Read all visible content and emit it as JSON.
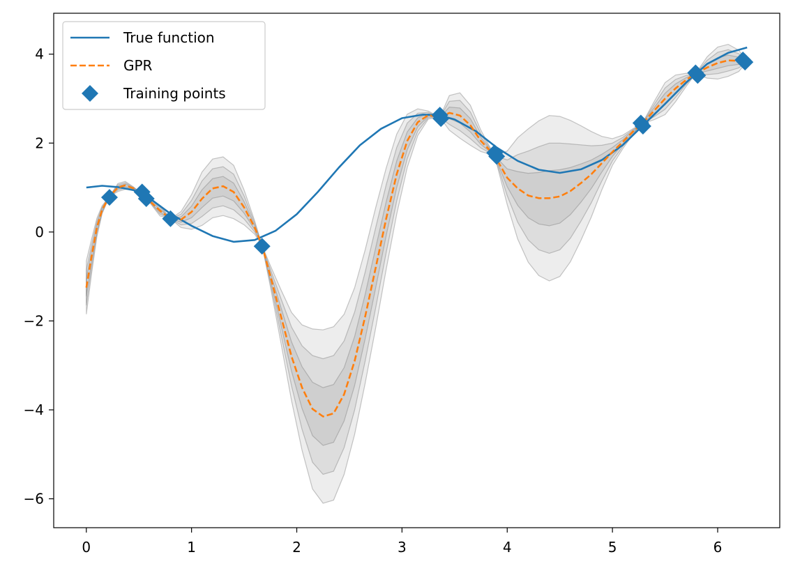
{
  "chart_data": {
    "type": "line",
    "title": "",
    "xlabel": "",
    "ylabel": "",
    "xlim": [
      -0.31,
      6.59
    ],
    "ylim": [
      -6.65,
      4.92
    ],
    "xticks": [
      0,
      1,
      2,
      3,
      4,
      5,
      6
    ],
    "yticks": [
      4,
      2,
      0,
      -2,
      -4,
      -6
    ],
    "xtick_labels": [
      "0",
      "1",
      "2",
      "3",
      "4",
      "5",
      "6"
    ],
    "ytick_labels": [
      "4",
      "2",
      "0",
      "−2",
      "−4",
      "−6"
    ],
    "grid": false,
    "legend_position": "top-left",
    "series": [
      {
        "name": "True function",
        "kind": "line",
        "color": "#1f77b4",
        "x": [
          0.0,
          0.15,
          0.3,
          0.45,
          0.6,
          0.8,
          1.0,
          1.2,
          1.4,
          1.6,
          1.8,
          2.0,
          2.2,
          2.4,
          2.6,
          2.8,
          3.0,
          3.2,
          3.35,
          3.5,
          3.7,
          3.9,
          4.1,
          4.3,
          4.5,
          4.7,
          4.9,
          5.1,
          5.3,
          5.5,
          5.7,
          5.9,
          6.1,
          6.28
        ],
        "y": [
          1.0,
          1.04,
          1.01,
          0.94,
          0.76,
          0.41,
          0.14,
          -0.09,
          -0.22,
          -0.18,
          0.03,
          0.4,
          0.9,
          1.45,
          1.95,
          2.32,
          2.56,
          2.64,
          2.63,
          2.53,
          2.27,
          1.9,
          1.6,
          1.4,
          1.33,
          1.41,
          1.62,
          1.96,
          2.42,
          2.88,
          3.36,
          3.78,
          4.03,
          4.15
        ]
      },
      {
        "name": "GPR",
        "kind": "dashed-line",
        "color": "#ff7f0e",
        "x": [
          0.0,
          0.05,
          0.1,
          0.15,
          0.22,
          0.3,
          0.37,
          0.45,
          0.53,
          0.6,
          0.7,
          0.8,
          0.9,
          1.0,
          1.1,
          1.2,
          1.3,
          1.4,
          1.5,
          1.6,
          1.67,
          1.75,
          1.85,
          1.95,
          2.05,
          2.15,
          2.25,
          2.35,
          2.45,
          2.55,
          2.65,
          2.75,
          2.85,
          2.95,
          3.05,
          3.15,
          3.25,
          3.36,
          3.45,
          3.55,
          3.65,
          3.75,
          3.88,
          4.0,
          4.1,
          4.2,
          4.3,
          4.4,
          4.5,
          4.6,
          4.7,
          4.8,
          4.9,
          5.0,
          5.1,
          5.2,
          5.28,
          5.4,
          5.5,
          5.6,
          5.7,
          5.79,
          5.9,
          6.0,
          6.1,
          6.2,
          6.25,
          6.28
        ],
        "y": [
          -1.25,
          -0.55,
          0.1,
          0.5,
          0.8,
          1.0,
          1.05,
          0.98,
          0.85,
          0.7,
          0.48,
          0.3,
          0.28,
          0.45,
          0.75,
          0.98,
          1.03,
          0.9,
          0.55,
          0.1,
          -0.3,
          -1.0,
          -1.9,
          -2.8,
          -3.5,
          -3.98,
          -4.15,
          -4.08,
          -3.65,
          -2.9,
          -1.9,
          -0.8,
          0.3,
          1.3,
          2.05,
          2.47,
          2.63,
          2.58,
          2.68,
          2.62,
          2.4,
          2.05,
          1.72,
          1.22,
          0.98,
          0.82,
          0.76,
          0.76,
          0.8,
          0.92,
          1.1,
          1.3,
          1.55,
          1.8,
          2.03,
          2.27,
          2.43,
          2.74,
          3.0,
          3.23,
          3.42,
          3.56,
          3.7,
          3.8,
          3.86,
          3.85,
          3.84,
          3.83
        ]
      }
    ],
    "uncertainty_bands": {
      "color": "#808080",
      "x": [
        0.0,
        0.05,
        0.1,
        0.15,
        0.22,
        0.3,
        0.37,
        0.45,
        0.53,
        0.6,
        0.7,
        0.8,
        0.9,
        1.0,
        1.1,
        1.2,
        1.3,
        1.4,
        1.5,
        1.6,
        1.67,
        1.75,
        1.85,
        1.95,
        2.05,
        2.15,
        2.25,
        2.35,
        2.45,
        2.55,
        2.65,
        2.75,
        2.85,
        2.95,
        3.05,
        3.15,
        3.25,
        3.36,
        3.45,
        3.55,
        3.65,
        3.75,
        3.88,
        4.0,
        4.1,
        4.2,
        4.3,
        4.4,
        4.5,
        4.6,
        4.7,
        4.8,
        4.9,
        5.0,
        5.1,
        5.2,
        5.28,
        5.4,
        5.5,
        5.6,
        5.7,
        5.79,
        5.9,
        6.0,
        6.1,
        6.2,
        6.25,
        6.28
      ],
      "half_width_1sigma": [
        0.2,
        0.13,
        0.07,
        0.03,
        0.0,
        0.03,
        0.03,
        0.01,
        0.0,
        0.01,
        0.04,
        0.0,
        0.06,
        0.13,
        0.2,
        0.22,
        0.22,
        0.2,
        0.13,
        0.05,
        0.0,
        0.08,
        0.2,
        0.33,
        0.47,
        0.6,
        0.65,
        0.65,
        0.6,
        0.55,
        0.5,
        0.45,
        0.38,
        0.3,
        0.2,
        0.1,
        0.03,
        0.0,
        0.13,
        0.17,
        0.15,
        0.08,
        0.0,
        0.2,
        0.38,
        0.5,
        0.58,
        0.62,
        0.6,
        0.53,
        0.43,
        0.32,
        0.2,
        0.1,
        0.05,
        0.02,
        0.0,
        0.07,
        0.12,
        0.1,
        0.05,
        0.0,
        0.08,
        0.12,
        0.12,
        0.08,
        0.03,
        0.0
      ]
    },
    "training_points": {
      "name": "Training points",
      "color": "#1f77b4",
      "marker": "diamond",
      "x": [
        0.22,
        0.53,
        0.57,
        0.8,
        1.67,
        3.36,
        3.37,
        3.88,
        3.9,
        5.27,
        5.29,
        5.79,
        5.81,
        6.24,
        6.26
      ],
      "y": [
        0.78,
        0.9,
        0.75,
        0.3,
        -0.32,
        2.63,
        2.55,
        1.78,
        1.7,
        2.45,
        2.38,
        3.58,
        3.52,
        3.87,
        3.82
      ]
    }
  }
}
